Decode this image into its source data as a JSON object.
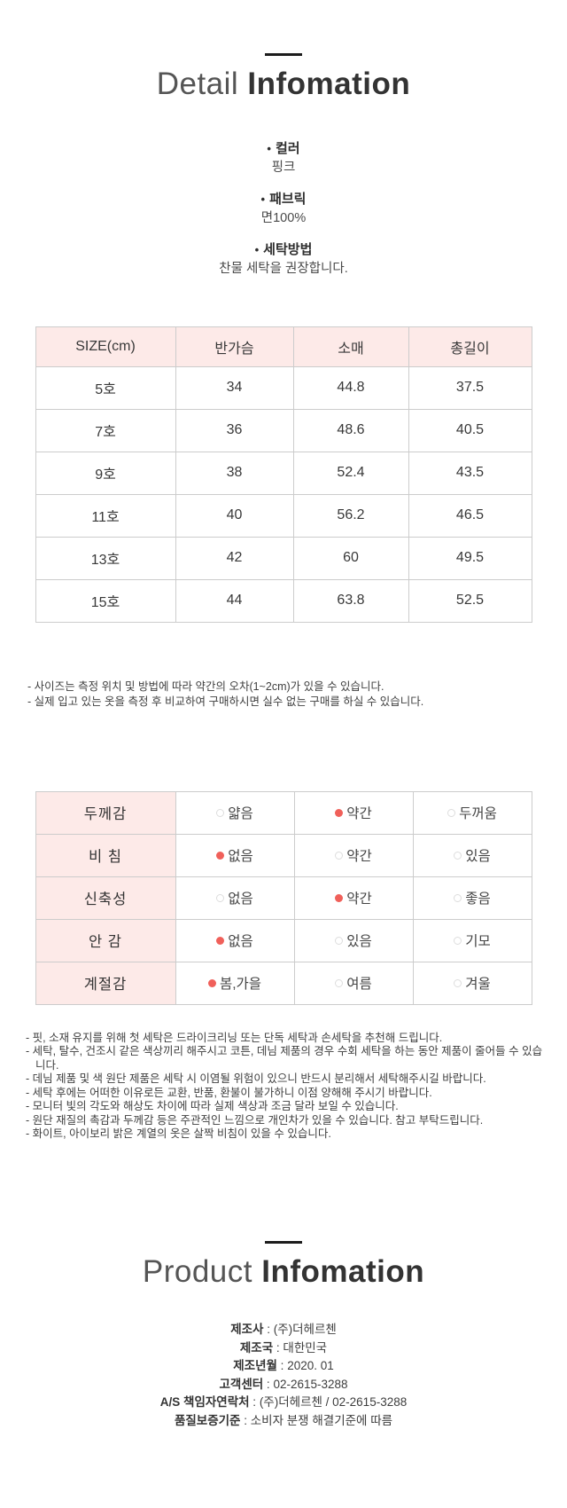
{
  "icons": {
    "bullet": "•"
  },
  "colors": {
    "header_pink": "#fdeae8",
    "selected_dot": "#f0605a",
    "table_border": "#cccccc",
    "title_dark": "#333333"
  },
  "detail_section": {
    "title_light": "Detail",
    "title_bold": "Infomation",
    "bullets": [
      {
        "label": "컬러",
        "value": "핑크"
      },
      {
        "label": "패브릭",
        "value": "면100%"
      },
      {
        "label": "세탁방법",
        "value": "찬물 세탁을 권장합니다."
      }
    ]
  },
  "size_table": {
    "headers": [
      "SIZE(cm)",
      "반가슴",
      "소매",
      "총길이"
    ],
    "rows": [
      [
        "5호",
        "34",
        "44.8",
        "37.5"
      ],
      [
        "7호",
        "36",
        "48.6",
        "40.5"
      ],
      [
        "9호",
        "38",
        "52.4",
        "43.5"
      ],
      [
        "11호",
        "40",
        "56.2",
        "46.5"
      ],
      [
        "13호",
        "42",
        "60",
        "49.5"
      ],
      [
        "15호",
        "44",
        "63.8",
        "52.5"
      ]
    ],
    "notes": [
      "- 사이즈는 측정 위치 및 방법에 따라 약간의 오차(1~2cm)가 있을 수 있습니다.",
      "- 실제 입고 있는 옷을 측정 후 비교하여 구매하시면 실수 없는 구매를 하실 수 있습니다."
    ]
  },
  "attribute_table": {
    "rows": [
      {
        "label": "두께감",
        "options": [
          {
            "text": "얇음",
            "selected": false
          },
          {
            "text": "약간",
            "selected": true
          },
          {
            "text": "두꺼움",
            "selected": false
          }
        ]
      },
      {
        "label": "비 침",
        "options": [
          {
            "text": "없음",
            "selected": true
          },
          {
            "text": "약간",
            "selected": false
          },
          {
            "text": "있음",
            "selected": false
          }
        ]
      },
      {
        "label": "신축성",
        "options": [
          {
            "text": "없음",
            "selected": false
          },
          {
            "text": "약간",
            "selected": true
          },
          {
            "text": "좋음",
            "selected": false
          }
        ]
      },
      {
        "label": "안 감",
        "options": [
          {
            "text": "없음",
            "selected": true
          },
          {
            "text": "있음",
            "selected": false
          },
          {
            "text": "기모",
            "selected": false
          }
        ]
      },
      {
        "label": "계절감",
        "options": [
          {
            "text": "봄,가을",
            "selected": true
          },
          {
            "text": "여름",
            "selected": false
          },
          {
            "text": "겨울",
            "selected": false
          }
        ]
      }
    ]
  },
  "care_notes": [
    "- 핏, 소재 유지를 위해 첫 세탁은 드라이크리닝 또는 단독 세탁과 손세탁을 추천해 드립니다.",
    "- 세탁, 탈수, 건조시 같은 색상끼리 해주시고 코튼, 데님 제품의 경우 수회 세탁을 하는 동안 제품이 줄어들 수 있습니다.",
    "- 데님 제품 및 색 원단 제품은 세탁 시 이염될 위험이 있으니 반드시 분리해서 세탁해주시길 바랍니다.",
    "- 세탁 후에는 어떠한 이유로든 교환, 반품, 환불이 불가하니 이점 양해해 주시기 바랍니다.",
    "- 모니터 빛의 각도와 해상도 차이에 따라 실제 색상과 조금 달라 보일 수 있습니다.",
    "- 원단 재질의 촉감과 두께감 등은 주관적인 느낌으로 개인차가 있을 수 있습니다. 참고 부탁드립니다.",
    "- 화이트, 아이보리 밝은 계열의 옷은 살짝 비침이 있을 수 있습니다."
  ],
  "product_section": {
    "title_light": "Product",
    "title_bold": "Infomation",
    "separator": " : ",
    "info": [
      {
        "label": "제조사",
        "value": "(주)더헤르첸"
      },
      {
        "label": "제조국",
        "value": "대한민국"
      },
      {
        "label": "제조년월",
        "value": "2020. 01"
      },
      {
        "label": "고객센터",
        "value": "02-2615-3288"
      },
      {
        "label": "A/S 책임자연락처",
        "value": "(주)더헤르첸 / 02-2615-3288"
      },
      {
        "label": "품질보증기준",
        "value": "소비자 분쟁 해결기준에 따름"
      }
    ]
  }
}
